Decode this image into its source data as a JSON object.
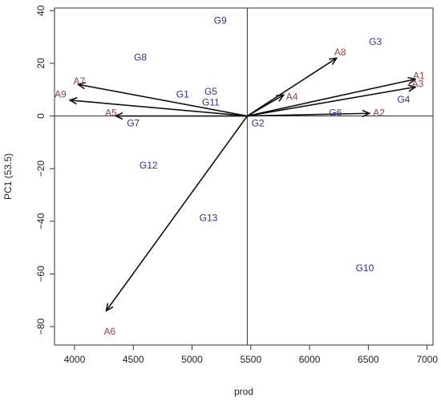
{
  "chart_data": {
    "type": "scatter",
    "title": "",
    "xlabel": "prod",
    "ylabel": "PC1 (53.5)",
    "xlim": [
      3830,
      7050
    ],
    "ylim": [
      -87,
      41
    ],
    "x_ticks": [
      4000,
      4500,
      5000,
      5500,
      6000,
      6500,
      7000
    ],
    "y_ticks": [
      -80,
      -60,
      -40,
      -20,
      0,
      20,
      40
    ],
    "x_tick_labels": [
      "4000",
      "4500",
      "5000",
      "5500",
      "6000",
      "6500",
      "7000"
    ],
    "y_tick_labels": [
      "−80",
      "−60",
      "−40",
      "−20",
      "0",
      "20",
      "40"
    ],
    "reference_lines": {
      "x": 5470,
      "y": 0
    },
    "grid": false,
    "legend": "none",
    "colors": {
      "genotype": "#2e2ea6",
      "environment": "#9a4040",
      "vector": "#111111",
      "axis": "#333333"
    },
    "genotypes": [
      {
        "label": "G1",
        "x": 4920,
        "y": 8
      },
      {
        "label": "G2",
        "x": 5560,
        "y": -3
      },
      {
        "label": "G3",
        "x": 6560,
        "y": 28
      },
      {
        "label": "G4",
        "x": 6800,
        "y": 6
      },
      {
        "label": "G5",
        "x": 5160,
        "y": 9
      },
      {
        "label": "G6",
        "x": 6220,
        "y": 1
      },
      {
        "label": "G7",
        "x": 4500,
        "y": -3
      },
      {
        "label": "G8",
        "x": 4560,
        "y": 22
      },
      {
        "label": "G9",
        "x": 5240,
        "y": 36
      },
      {
        "label": "G10",
        "x": 6470,
        "y": -58
      },
      {
        "label": "G11",
        "x": 5160,
        "y": 5
      },
      {
        "label": "G12",
        "x": 4630,
        "y": -19
      },
      {
        "label": "G13",
        "x": 5140,
        "y": -39
      }
    ],
    "environments": [
      {
        "label": "A1",
        "x": 6930,
        "y": 15,
        "arrow_x": 6900,
        "arrow_y": 14
      },
      {
        "label": "A2",
        "x": 6590,
        "y": 1,
        "arrow_x": 6510,
        "arrow_y": 1
      },
      {
        "label": "A3",
        "x": 6920,
        "y": 12,
        "arrow_x": 6900,
        "arrow_y": 11
      },
      {
        "label": "A4",
        "x": 5850,
        "y": 7,
        "arrow_x": 5780,
        "arrow_y": 8
      },
      {
        "label": "A5",
        "x": 4310,
        "y": 1,
        "arrow_x": 4350,
        "arrow_y": 0
      },
      {
        "label": "A6",
        "x": 4300,
        "y": -82,
        "arrow_x": 4270,
        "arrow_y": -74
      },
      {
        "label": "A7",
        "x": 4040,
        "y": 13,
        "arrow_x": 4030,
        "arrow_y": 12
      },
      {
        "label": "A8",
        "x": 6260,
        "y": 24,
        "arrow_x": 6230,
        "arrow_y": 22
      },
      {
        "label": "A9",
        "x": 3880,
        "y": 8,
        "arrow_x": 3960,
        "arrow_y": 6
      }
    ]
  }
}
